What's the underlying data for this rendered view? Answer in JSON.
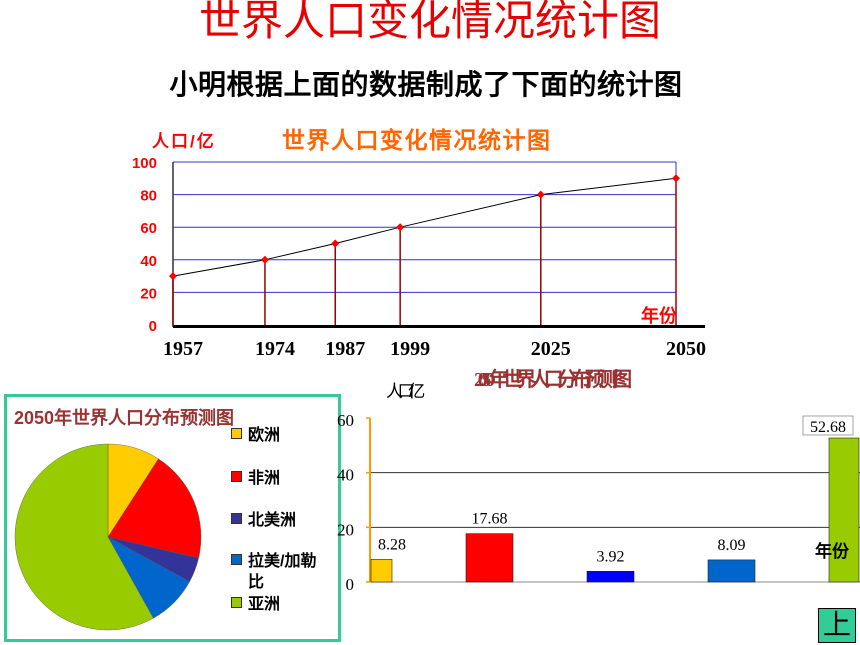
{
  "slide": {
    "title": "世界人口变化情况统计图",
    "subtitle": "小明根据上面的数据制成了下面的统计图",
    "nav_button_label": "上"
  },
  "colors": {
    "slide_title": "#E60000",
    "line_chart_title": "#FF6600",
    "line_axis_text": "#FF0000",
    "line_grid": "#3333CC",
    "drop_line": "#990000",
    "marker": "#FF0000",
    "pie_panel_border": "#33CC99",
    "chart_title_dark_red": "#993333",
    "bar_axis": "#FF9900",
    "nav_button": "#33CC99"
  },
  "chart_data": [
    {
      "type": "line",
      "title": "世界人口变化情况统计图",
      "ylabel": "人口/亿",
      "xlabel": "年份",
      "x": [
        1957,
        1974,
        1987,
        1999,
        2025,
        2050
      ],
      "y": [
        30,
        40,
        50,
        60,
        80,
        90
      ],
      "xlim": [
        1957,
        2050
      ],
      "ylim": [
        0,
        100
      ],
      "yticks": [
        0,
        20,
        40,
        60,
        80,
        100
      ],
      "grid": true,
      "markers": "diamond",
      "drop_lines": true
    },
    {
      "type": "pie",
      "title": "2050年世界人口分布预测图",
      "labels": [
        "欧洲",
        "非洲",
        "北美洲",
        "拉美/加勒比",
        "亚洲"
      ],
      "values": [
        8.28,
        17.68,
        3.92,
        8.09,
        52.68
      ],
      "colors": [
        "#FFCC00",
        "#FF0000",
        "#333399",
        "#0066CC",
        "#99CC00"
      ],
      "legend": "right"
    },
    {
      "type": "bar",
      "title": "2050年世界人口分布预测图",
      "ylabel": "人口/亿",
      "xlabel": "年份",
      "values": [
        8.28,
        17.68,
        3.92,
        8.09,
        52.68
      ],
      "colors": [
        "#FFCC00",
        "#FF0000",
        "#0000FF",
        "#0066CC",
        "#99CC00"
      ],
      "ylim": [
        0,
        60
      ],
      "yticks": [
        0,
        20,
        40,
        60
      ],
      "grid": true
    }
  ]
}
